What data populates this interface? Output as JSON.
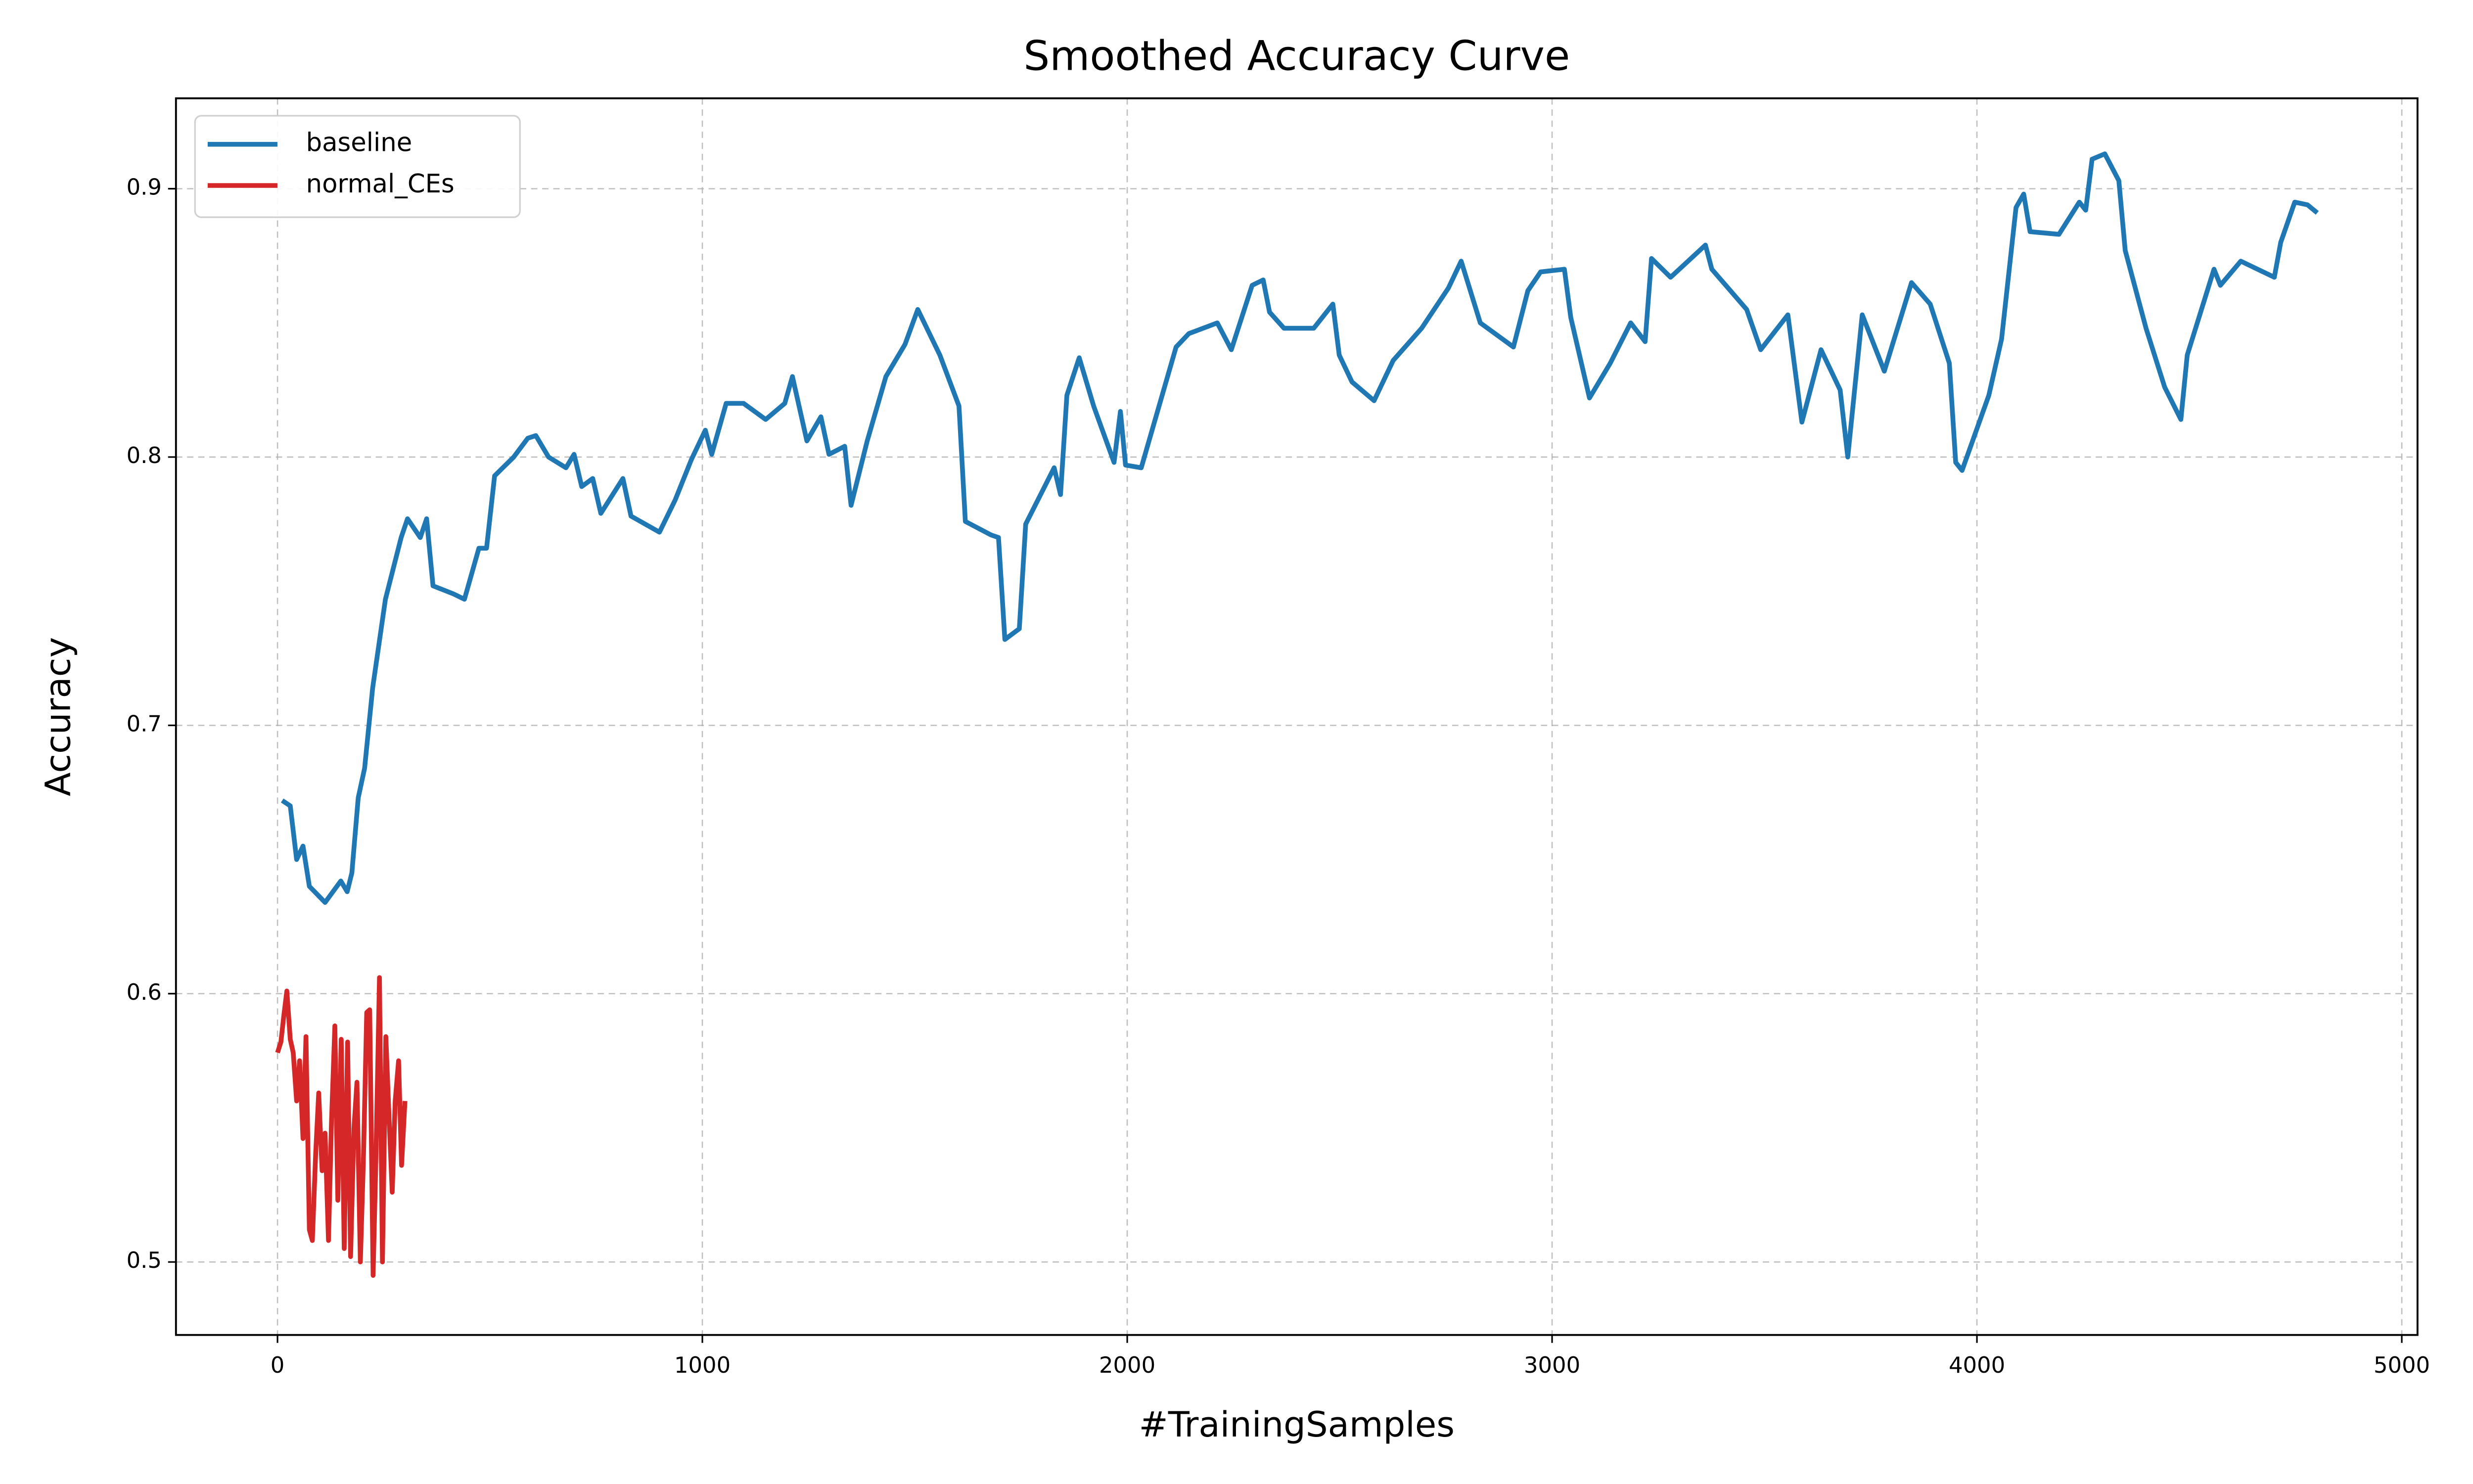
{
  "chart_data": {
    "type": "line",
    "title": "Smoothed Accuracy Curve",
    "xlabel": "#TrainingSamples",
    "ylabel": "Accuracy",
    "xlim": [
      -239,
      5037
    ],
    "ylim": [
      0.4728,
      0.9337
    ],
    "xticks": [
      0,
      1000,
      2000,
      3000,
      4000,
      5000
    ],
    "yticks": [
      0.5,
      0.6,
      0.7,
      0.8,
      0.9
    ],
    "grid": true,
    "legend": "upper-left",
    "series": [
      {
        "name": "baseline",
        "color": "#1f77b4",
        "x": [
          11,
          30,
          45,
          60,
          75,
          112,
          149,
          164,
          175,
          190,
          205,
          224,
          254,
          291,
          306,
          336,
          351,
          366,
          414,
          440,
          474,
          492,
          511,
          556,
          589,
          608,
          638,
          679,
          698,
          716,
          742,
          761,
          813,
          832,
          899,
          936,
          974,
          1007,
          1022,
          1056,
          1097,
          1149,
          1194,
          1212,
          1246,
          1279,
          1298,
          1335,
          1350,
          1388,
          1432,
          1477,
          1507,
          1559,
          1604,
          1619,
          1679,
          1697,
          1712,
          1746,
          1761,
          1828,
          1843,
          1858,
          1887,
          1921,
          1969,
          1984,
          1996,
          2033,
          2115,
          2145,
          2212,
          2245,
          2294,
          2320,
          2335,
          2369,
          2439,
          2484,
          2499,
          2529,
          2581,
          2626,
          2693,
          2756,
          2786,
          2831,
          2909,
          2943,
          2973,
          3029,
          3044,
          3088,
          3137,
          3185,
          3219,
          3234,
          3279,
          3361,
          3376,
          3458,
          3491,
          3555,
          3588,
          3633,
          3678,
          3696,
          3730,
          3782,
          3846,
          3890,
          3935,
          3950,
          3965,
          4028,
          4058,
          4092,
          4110,
          4125,
          4193,
          4241,
          4256,
          4271,
          4301,
          4334,
          4349,
          4398,
          4442,
          4480,
          4495,
          4558,
          4573,
          4621,
          4700,
          4715,
          4748,
          4778,
          4801
        ],
        "values": [
          0.672,
          0.67,
          0.65,
          0.655,
          0.64,
          0.634,
          0.642,
          0.638,
          0.645,
          0.673,
          0.684,
          0.714,
          0.747,
          0.77,
          0.777,
          0.77,
          0.777,
          0.752,
          0.749,
          0.747,
          0.766,
          0.766,
          0.793,
          0.8,
          0.807,
          0.808,
          0.8,
          0.796,
          0.801,
          0.789,
          0.792,
          0.779,
          0.792,
          0.778,
          0.772,
          0.784,
          0.799,
          0.81,
          0.801,
          0.82,
          0.82,
          0.814,
          0.82,
          0.83,
          0.806,
          0.815,
          0.801,
          0.804,
          0.782,
          0.806,
          0.83,
          0.842,
          0.855,
          0.838,
          0.819,
          0.776,
          0.771,
          0.77,
          0.732,
          0.736,
          0.775,
          0.796,
          0.786,
          0.823,
          0.837,
          0.819,
          0.798,
          0.817,
          0.797,
          0.796,
          0.841,
          0.846,
          0.85,
          0.84,
          0.864,
          0.866,
          0.854,
          0.848,
          0.848,
          0.857,
          0.838,
          0.828,
          0.821,
          0.836,
          0.848,
          0.863,
          0.873,
          0.85,
          0.841,
          0.862,
          0.869,
          0.87,
          0.852,
          0.822,
          0.835,
          0.85,
          0.843,
          0.874,
          0.867,
          0.879,
          0.87,
          0.855,
          0.84,
          0.853,
          0.813,
          0.84,
          0.825,
          0.8,
          0.853,
          0.832,
          0.865,
          0.857,
          0.835,
          0.798,
          0.795,
          0.823,
          0.844,
          0.893,
          0.898,
          0.884,
          0.883,
          0.895,
          0.892,
          0.911,
          0.913,
          0.903,
          0.877,
          0.848,
          0.826,
          0.814,
          0.838,
          0.87,
          0.864,
          0.873,
          0.867,
          0.88,
          0.895,
          0.894,
          0.891
        ]
      },
      {
        "name": "normal_CEs",
        "color": "#d62728",
        "x": [
          0,
          8,
          15,
          22,
          30,
          37,
          45,
          52,
          60,
          67,
          75,
          82,
          90,
          97,
          105,
          112,
          120,
          127,
          135,
          142,
          150,
          157,
          165,
          172,
          180,
          187,
          195,
          202,
          210,
          217,
          225,
          232,
          240,
          247,
          255,
          262,
          270,
          277,
          285,
          292,
          300
        ],
        "values": [
          0.578,
          0.582,
          0.592,
          0.601,
          0.583,
          0.578,
          0.56,
          0.575,
          0.546,
          0.584,
          0.512,
          0.508,
          0.541,
          0.563,
          0.534,
          0.548,
          0.508,
          0.552,
          0.588,
          0.523,
          0.583,
          0.505,
          0.582,
          0.502,
          0.55,
          0.567,
          0.5,
          0.537,
          0.593,
          0.594,
          0.495,
          0.541,
          0.606,
          0.5,
          0.584,
          0.556,
          0.526,
          0.56,
          0.575,
          0.536,
          0.56
        ]
      }
    ]
  }
}
